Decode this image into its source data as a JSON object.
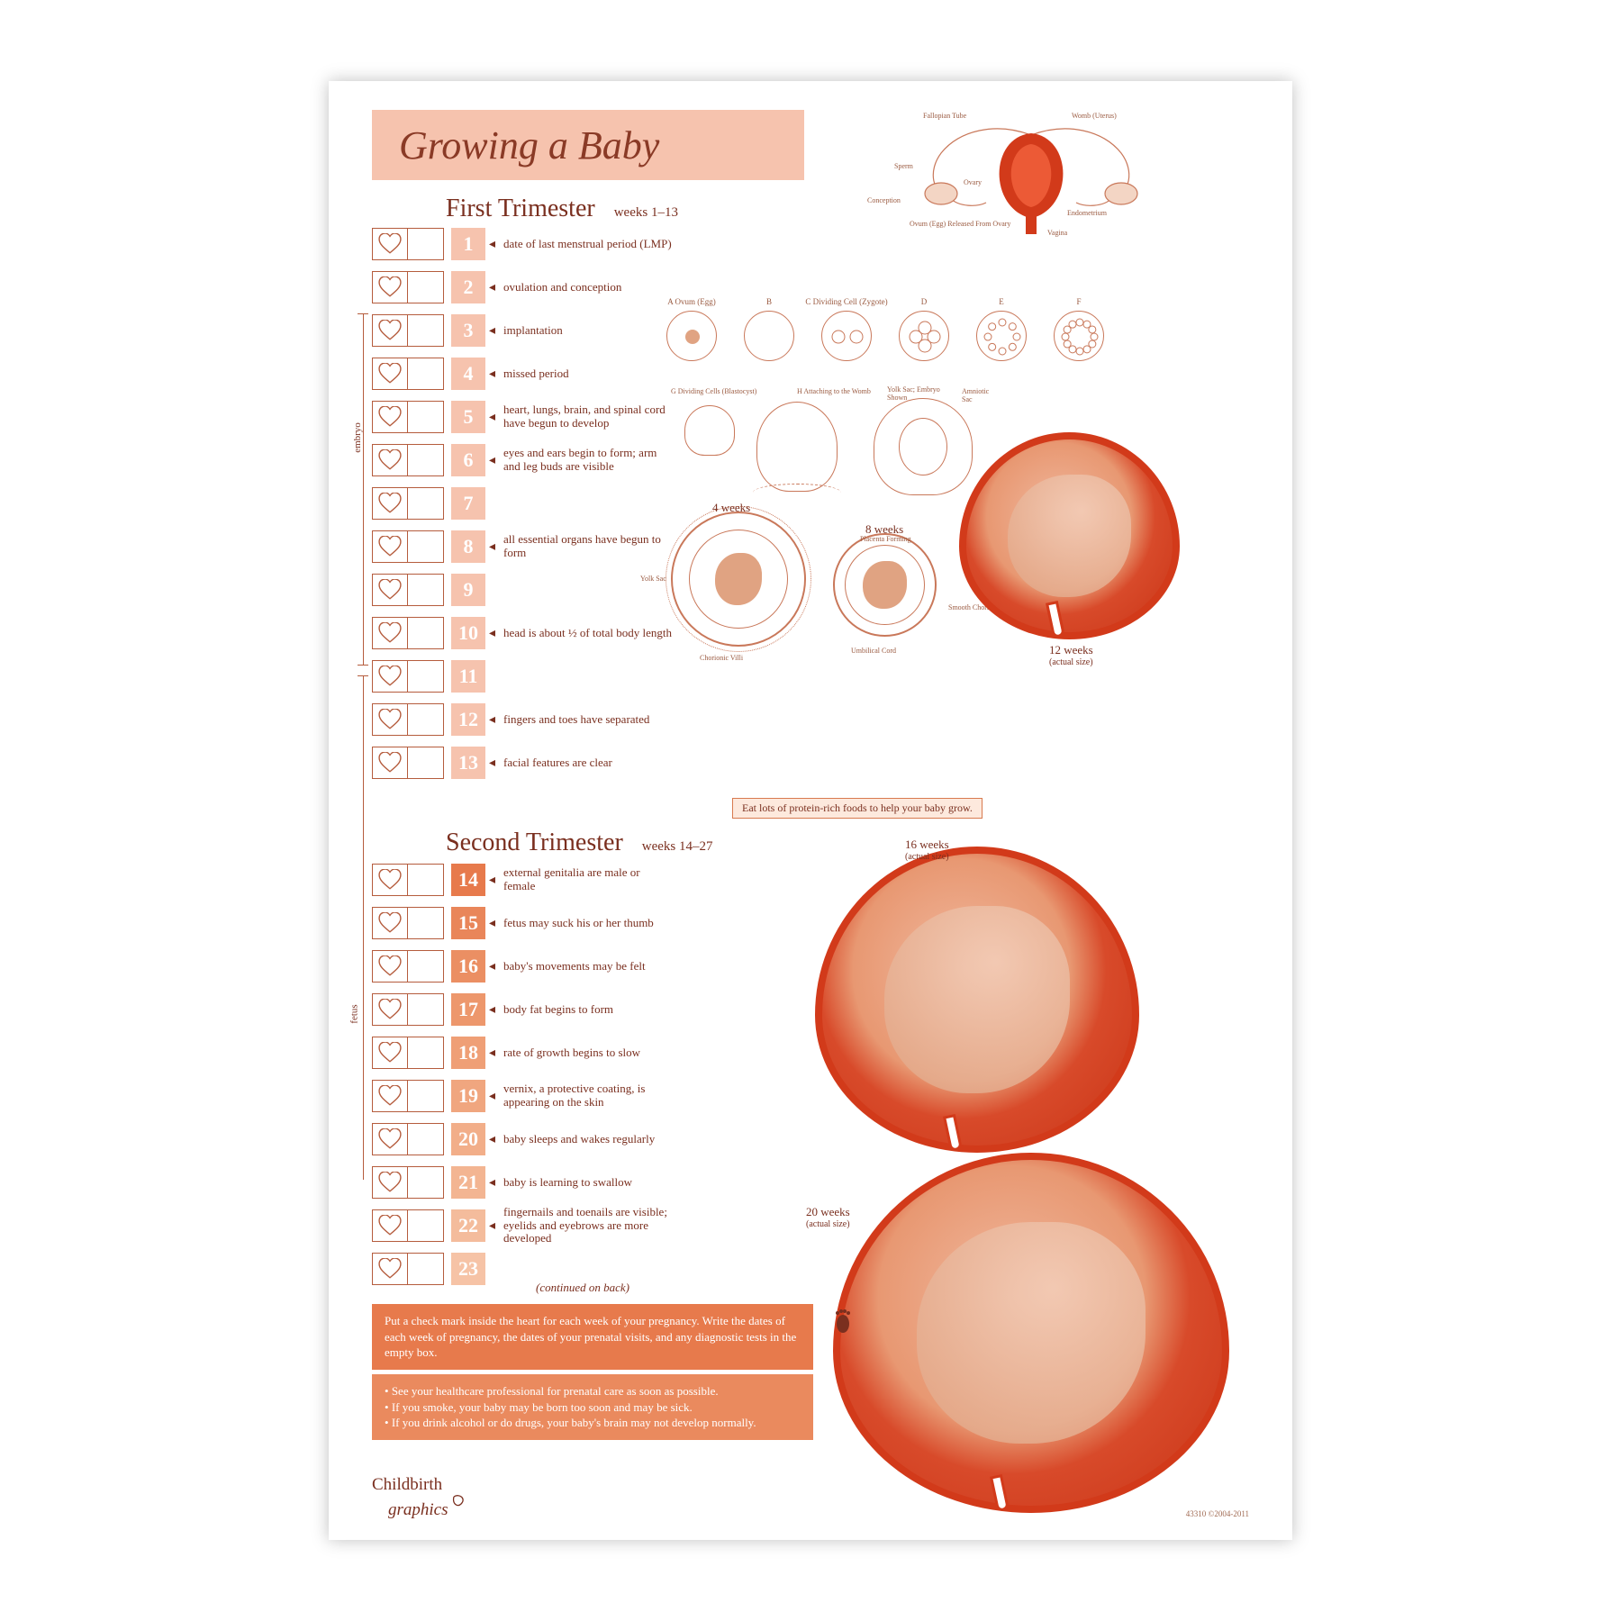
{
  "colors": {
    "peach_light": "#f6c3ae",
    "peach_mid": "#f0a67f",
    "orange": "#e77a4c",
    "orange_light": "#ea8a5e",
    "red": "#d23a1a",
    "brown_text": "#7a2f1f",
    "outline": "#b55c3d",
    "bg": "#ffffff"
  },
  "title": "Growing a Baby",
  "trimester1": {
    "heading": "First Trimester",
    "weeks_range": "weeks 1–13",
    "side_label": "embryo",
    "weeks": [
      {
        "n": "1",
        "color": "#f6c3ae",
        "desc": "date of last menstrual period (LMP)"
      },
      {
        "n": "2",
        "color": "#f6c3ae",
        "desc": "ovulation and conception"
      },
      {
        "n": "3",
        "color": "#f6c3ae",
        "desc": "implantation"
      },
      {
        "n": "4",
        "color": "#f6c3ae",
        "desc": "missed period"
      },
      {
        "n": "5",
        "color": "#f6c3ae",
        "desc": "heart, lungs, brain, and spinal cord have begun to develop"
      },
      {
        "n": "6",
        "color": "#f6c3ae",
        "desc": "eyes and ears begin to form; arm and leg buds are visible"
      },
      {
        "n": "7",
        "color": "#f6c3ae",
        "desc": ""
      },
      {
        "n": "8",
        "color": "#f6c3ae",
        "desc": "all essential organs have begun to form"
      },
      {
        "n": "9",
        "color": "#f6c3ae",
        "desc": ""
      },
      {
        "n": "10",
        "color": "#f6c3ae",
        "desc": "head is about ½ of total body length"
      },
      {
        "n": "11",
        "color": "#f6c3ae",
        "desc": ""
      },
      {
        "n": "12",
        "color": "#f6c3ae",
        "desc": "fingers and toes have separated"
      },
      {
        "n": "13",
        "color": "#f6c3ae",
        "desc": "facial features are clear"
      }
    ],
    "tip": "Eat lots of protein-rich foods to help your baby grow."
  },
  "trimester2": {
    "heading": "Second Trimester",
    "weeks_range": "weeks 14–27",
    "side_label": "fetus",
    "weeks": [
      {
        "n": "14",
        "color": "#e77a4c",
        "desc": "external genitalia are male or female"
      },
      {
        "n": "15",
        "color": "#e9865a",
        "desc": "fetus may suck his or her thumb"
      },
      {
        "n": "16",
        "color": "#eb8f63",
        "desc": "baby's movements may be felt"
      },
      {
        "n": "17",
        "color": "#ed976c",
        "desc": "body fat begins to form"
      },
      {
        "n": "18",
        "color": "#ef9f76",
        "desc": "rate of growth begins to slow"
      },
      {
        "n": "19",
        "color": "#f0a67f",
        "desc": "vernix, a protective coating, is appearing on the skin"
      },
      {
        "n": "20",
        "color": "#f2ae89",
        "desc": "baby sleeps and wakes regularly"
      },
      {
        "n": "21",
        "color": "#f3b592",
        "desc": "baby is learning to swallow"
      },
      {
        "n": "22",
        "color": "#f4bc9c",
        "desc": "fingernails and toenails are visible; eyelids and eyebrows are more developed"
      },
      {
        "n": "23",
        "color": "#f6c3a6",
        "desc": ""
      }
    ],
    "continued": "(continued on back)"
  },
  "cells": {
    "labels": [
      "A  Ovum (Egg)",
      "B",
      "C  Dividing Cell (Zygote)",
      "D",
      "E",
      "F"
    ],
    "g_label": "G  Dividing Cells (Blastocyst)",
    "h_label": "H  Attaching to the Womb",
    "yolk_sac": "Yolk Sac; Embryo Shown",
    "amniotic": "Amniotic Sac"
  },
  "stage_labels": {
    "w4": "4 weeks",
    "w4_yolk": "Yolk Sac",
    "w4_villi": "Chorionic Villi",
    "w8": "8 weeks",
    "w8_placenta": "Placenta Forming",
    "w8_chorion": "Smooth Chorion",
    "w8_cord": "Umbilical Cord",
    "w12": "12 weeks",
    "w12_sub": "(actual size)",
    "w16": "16 weeks",
    "w16_sub": "(actual size)",
    "w20": "20 weeks",
    "w20_sub": "(actual size)"
  },
  "anatomy_labels": {
    "fallopian": "Fallopian Tube",
    "womb": "Womb (Uterus)",
    "sperm": "Sperm",
    "ovary": "Ovary",
    "conception": "Conception",
    "ovum": "Ovum (Egg) Released From Ovary",
    "endometrium": "Endometrium",
    "vagina": "Vagina"
  },
  "info_box": "Put a check mark inside the heart for each week of your pregnancy. Write the dates of each week of pregnancy, the dates of your prenatal visits, and any diagnostic tests in the empty box.",
  "advice_box": {
    "b1": "See your healthcare professional for prenatal care as soon as possible.",
    "b2": "If you smoke, your baby may be born too soon and may be sick.",
    "b3": "If you drink alcohol or do drugs, your baby's brain may not develop normally."
  },
  "footer": {
    "brand1": "Childbirth",
    "brand2": "graphics",
    "code": "43310 ©2004-2011"
  }
}
